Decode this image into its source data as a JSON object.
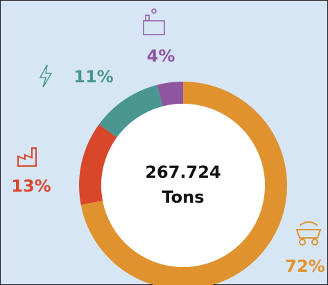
{
  "chart_data": {
    "type": "donut",
    "values": [
      72,
      13,
      11,
      4
    ],
    "value_labels": [
      "72%",
      "13%",
      "11%",
      "4%"
    ],
    "colors": [
      "#e0922f",
      "#d9472b",
      "#4a9690",
      "#8e55a0"
    ],
    "center_value": "267.724",
    "center_unit": "Tons",
    "start": "top",
    "direction": "clockwise"
  }
}
